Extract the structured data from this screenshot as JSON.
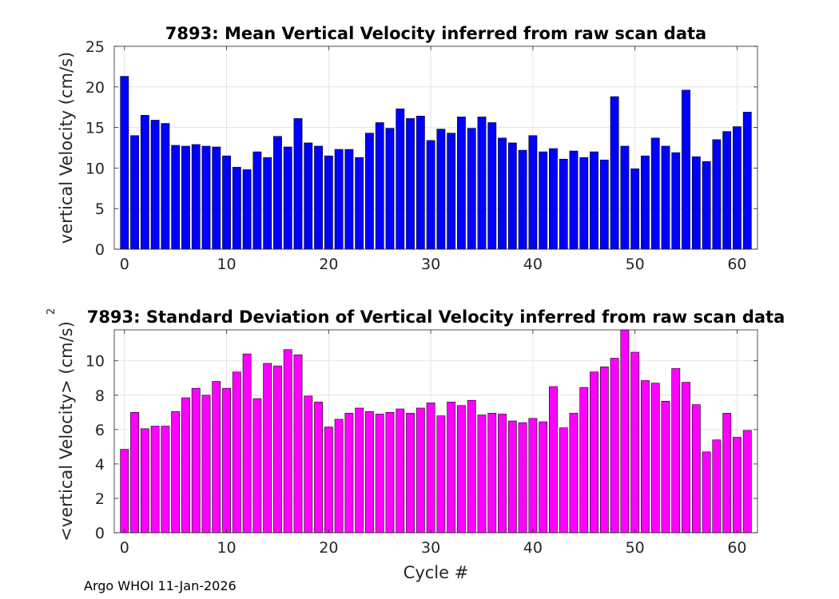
{
  "chart_data": [
    {
      "type": "bar",
      "title": "7893: Mean Vertical Velocity inferred from raw scan data",
      "xlabel": "",
      "ylabel": "vertical Velocity (cm/s)",
      "xlim": [
        -1,
        62
      ],
      "ylim": [
        0,
        25
      ],
      "xticks": [
        0,
        10,
        20,
        30,
        40,
        50,
        60
      ],
      "yticks": [
        0,
        5,
        10,
        15,
        20,
        25
      ],
      "grid": true,
      "bar_color": "#0000ff",
      "x": [
        0,
        1,
        2,
        3,
        4,
        5,
        6,
        7,
        8,
        9,
        10,
        11,
        12,
        13,
        14,
        15,
        16,
        17,
        18,
        19,
        20,
        21,
        22,
        23,
        24,
        25,
        26,
        27,
        28,
        29,
        30,
        31,
        32,
        33,
        34,
        35,
        36,
        37,
        38,
        39,
        40,
        41,
        42,
        43,
        44,
        45,
        46,
        47,
        48,
        49,
        50,
        51,
        52,
        53,
        54,
        55,
        56,
        57,
        58,
        59,
        60,
        61
      ],
      "values": [
        21.3,
        14.0,
        16.5,
        15.9,
        15.5,
        12.8,
        12.7,
        12.9,
        12.7,
        12.6,
        11.5,
        10.1,
        9.8,
        12.0,
        11.3,
        13.9,
        12.6,
        16.1,
        13.1,
        12.7,
        11.5,
        12.3,
        12.3,
        11.3,
        14.3,
        15.6,
        14.9,
        17.3,
        16.1,
        16.4,
        13.4,
        14.8,
        14.3,
        16.3,
        14.9,
        16.3,
        15.6,
        13.7,
        13.1,
        12.2,
        14.0,
        12.0,
        12.4,
        11.1,
        12.1,
        11.3,
        12.0,
        11.0,
        18.8,
        12.7,
        9.9,
        11.5,
        13.7,
        12.7,
        11.9,
        19.6,
        11.4,
        10.8,
        13.5,
        14.5,
        15.1,
        16.9
      ]
    },
    {
      "type": "bar",
      "title": "7893: Standard Deviation of Vertical Velocity inferred from raw scan data",
      "xlabel": "Cycle #",
      "ylabel": "<vertical Velocity> (cm/s)",
      "ylabel_superscript": "2",
      "xlim": [
        -1,
        62
      ],
      "ylim": [
        0,
        11.8
      ],
      "xticks": [
        0,
        10,
        20,
        30,
        40,
        50,
        60
      ],
      "yticks": [
        0,
        2,
        4,
        6,
        8,
        10
      ],
      "grid": true,
      "bar_color": "#ff00ff",
      "x": [
        0,
        1,
        2,
        3,
        4,
        5,
        6,
        7,
        8,
        9,
        10,
        11,
        12,
        13,
        14,
        15,
        16,
        17,
        18,
        19,
        20,
        21,
        22,
        23,
        24,
        25,
        26,
        27,
        28,
        29,
        30,
        31,
        32,
        33,
        34,
        35,
        36,
        37,
        38,
        39,
        40,
        41,
        42,
        43,
        44,
        45,
        46,
        47,
        48,
        49,
        50,
        51,
        52,
        53,
        54,
        55,
        56,
        57,
        58,
        59,
        60,
        61
      ],
      "values": [
        4.85,
        7.0,
        6.05,
        6.2,
        6.2,
        7.05,
        7.85,
        8.4,
        8.0,
        8.8,
        8.4,
        9.35,
        10.4,
        7.8,
        9.85,
        9.7,
        10.65,
        10.35,
        7.95,
        7.6,
        6.15,
        6.6,
        6.95,
        7.25,
        7.05,
        6.9,
        7.0,
        7.2,
        6.95,
        7.25,
        7.55,
        6.8,
        7.6,
        7.4,
        7.7,
        6.85,
        6.95,
        6.9,
        6.5,
        6.4,
        6.65,
        6.45,
        8.5,
        6.1,
        6.95,
        8.45,
        9.35,
        9.65,
        10.15,
        11.8,
        10.5,
        8.85,
        8.7,
        7.65,
        9.55,
        8.75,
        7.45,
        4.7,
        5.4,
        6.95,
        5.55,
        5.95
      ]
    }
  ],
  "footer": "Argo WHOI 11-Jan-2026"
}
